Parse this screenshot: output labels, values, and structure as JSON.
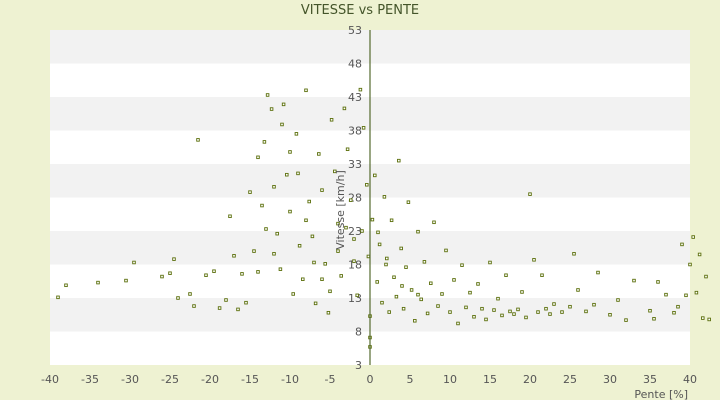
{
  "chart_data": {
    "type": "scatter",
    "title": "VITESSE vs PENTE",
    "xlabel": "Pente [%]",
    "ylabel": "Vitesse [km/h]",
    "xlim": [
      -40,
      40
    ],
    "ylim": [
      3,
      53
    ],
    "x_ticks": [
      -40,
      -35,
      -30,
      -25,
      -20,
      -15,
      -10,
      -5,
      0,
      5,
      10,
      15,
      20,
      25,
      30,
      35,
      40
    ],
    "y_ticks": [
      3,
      8,
      13,
      18,
      23,
      28,
      33,
      38,
      43,
      48,
      53
    ],
    "grid": "alternating horizontal bands",
    "legend": "none",
    "colors": {
      "background": "#eef2d2",
      "plot": "#ffffff",
      "band": "#f2f2f2",
      "points": "#5a6e0a",
      "axis": "#556b2f"
    },
    "series": [
      {
        "points": [
          [
            -39,
            13.1
          ],
          [
            -38,
            14.9
          ],
          [
            -34,
            15.3
          ],
          [
            -29.5,
            18.3
          ],
          [
            -30.5,
            15.6
          ],
          [
            -26,
            16.2
          ],
          [
            -24,
            13.0
          ],
          [
            -24.5,
            18.8
          ],
          [
            -25,
            16.7
          ],
          [
            -22.5,
            13.6
          ],
          [
            -22,
            11.8
          ],
          [
            -21.5,
            36.6
          ],
          [
            -20.5,
            16.4
          ],
          [
            -19.5,
            17.0
          ],
          [
            -18.8,
            11.5
          ],
          [
            -18,
            12.7
          ],
          [
            -17.5,
            25.2
          ],
          [
            -17,
            19.3
          ],
          [
            -16.5,
            11.3
          ],
          [
            -16,
            16.6
          ],
          [
            -15.5,
            12.3
          ],
          [
            -15,
            28.8
          ],
          [
            -14.5,
            20.0
          ],
          [
            -14,
            34.0
          ],
          [
            -13.5,
            26.8
          ],
          [
            -13.2,
            36.3
          ],
          [
            -12.8,
            43.3
          ],
          [
            -12.3,
            41.2
          ],
          [
            -12,
            29.6
          ],
          [
            -11.6,
            22.6
          ],
          [
            -11.2,
            17.3
          ],
          [
            -10.8,
            41.9
          ],
          [
            -10.4,
            31.4
          ],
          [
            -10,
            25.9
          ],
          [
            -9.6,
            13.6
          ],
          [
            -9.2,
            37.5
          ],
          [
            -8.8,
            20.8
          ],
          [
            -8.4,
            15.8
          ],
          [
            -8,
            44.0
          ],
          [
            -7.6,
            27.4
          ],
          [
            -7.2,
            22.2
          ],
          [
            -6.8,
            12.2
          ],
          [
            -6.4,
            34.5
          ],
          [
            -6,
            29.1
          ],
          [
            -5.6,
            18.1
          ],
          [
            -5.2,
            10.8
          ],
          [
            -4.8,
            39.6
          ],
          [
            -4.4,
            31.9
          ],
          [
            -4,
            24.1
          ],
          [
            -3.6,
            16.3
          ],
          [
            -3.2,
            41.3
          ],
          [
            -2.8,
            35.2
          ],
          [
            -2.4,
            27.6
          ],
          [
            -2,
            21.8
          ],
          [
            -1.6,
            13.4
          ],
          [
            -1.2,
            44.1
          ],
          [
            -0.8,
            38.4
          ],
          [
            -0.4,
            29.9
          ],
          [
            -0.2,
            19.2
          ],
          [
            0,
            10.3
          ],
          [
            0,
            7.1
          ],
          [
            0,
            5.7
          ],
          [
            0.3,
            24.7
          ],
          [
            0.6,
            31.3
          ],
          [
            0.9,
            15.4
          ],
          [
            1.2,
            21.0
          ],
          [
            1.5,
            12.3
          ],
          [
            1.8,
            28.1
          ],
          [
            2.1,
            18.9
          ],
          [
            2.4,
            10.9
          ],
          [
            2.7,
            24.6
          ],
          [
            3,
            16.1
          ],
          [
            3.3,
            13.2
          ],
          [
            3.6,
            33.5
          ],
          [
            3.9,
            20.4
          ],
          [
            4.2,
            11.4
          ],
          [
            4.5,
            17.6
          ],
          [
            4.8,
            27.3
          ],
          [
            5.2,
            14.2
          ],
          [
            5.6,
            9.6
          ],
          [
            6,
            22.9
          ],
          [
            6.4,
            12.8
          ],
          [
            6.8,
            18.4
          ],
          [
            7.2,
            10.7
          ],
          [
            7.6,
            15.2
          ],
          [
            8,
            24.3
          ],
          [
            8.5,
            11.8
          ],
          [
            9,
            13.6
          ],
          [
            9.5,
            20.1
          ],
          [
            10,
            10.9
          ],
          [
            10.5,
            15.7
          ],
          [
            11,
            9.2
          ],
          [
            11.5,
            17.9
          ],
          [
            12,
            11.6
          ],
          [
            12.5,
            13.8
          ],
          [
            13,
            10.2
          ],
          [
            13.5,
            15.1
          ],
          [
            14,
            11.4
          ],
          [
            14.5,
            9.8
          ],
          [
            15,
            18.3
          ],
          [
            15.5,
            11.2
          ],
          [
            16,
            12.9
          ],
          [
            16.5,
            10.4
          ],
          [
            17,
            16.4
          ],
          [
            17.5,
            11.0
          ],
          [
            18,
            10.6
          ],
          [
            18.5,
            11.3
          ],
          [
            19,
            13.9
          ],
          [
            19.5,
            10.1
          ],
          [
            20,
            28.5
          ],
          [
            20.5,
            18.7
          ],
          [
            21,
            10.9
          ],
          [
            21.5,
            16.4
          ],
          [
            22,
            11.4
          ],
          [
            22.5,
            10.6
          ],
          [
            23,
            12.1
          ],
          [
            24,
            10.9
          ],
          [
            25,
            11.7
          ],
          [
            25.5,
            19.6
          ],
          [
            26,
            14.2
          ],
          [
            27,
            11.0
          ],
          [
            28,
            12.0
          ],
          [
            28.5,
            16.8
          ],
          [
            30,
            10.5
          ],
          [
            31,
            12.7
          ],
          [
            32,
            9.7
          ],
          [
            33,
            15.6
          ],
          [
            35,
            11.1
          ],
          [
            35.5,
            9.9
          ],
          [
            36,
            15.4
          ],
          [
            37,
            13.5
          ],
          [
            38,
            10.8
          ],
          [
            38.5,
            11.7
          ],
          [
            39,
            21.0
          ],
          [
            39.5,
            13.4
          ],
          [
            40,
            18.0
          ],
          [
            40.4,
            22.1
          ],
          [
            40.8,
            13.8
          ],
          [
            41.2,
            19.5
          ],
          [
            41.6,
            10.0
          ],
          [
            42,
            16.2
          ],
          [
            42.4,
            9.8
          ],
          [
            -3,
            23.5
          ],
          [
            -1,
            23.0
          ],
          [
            1,
            22.8
          ],
          [
            -2,
            18.5
          ],
          [
            2,
            18.0
          ],
          [
            -4,
            20.0
          ],
          [
            4,
            14.8
          ],
          [
            6,
            13.5
          ],
          [
            -5,
            14.0
          ],
          [
            -6,
            15.8
          ],
          [
            -7,
            18.3
          ],
          [
            -8,
            24.6
          ],
          [
            -9,
            31.6
          ],
          [
            -10,
            34.8
          ],
          [
            -11,
            38.9
          ],
          [
            -12,
            19.6
          ],
          [
            -13,
            23.3
          ],
          [
            -14,
            16.9
          ]
        ]
      }
    ]
  }
}
